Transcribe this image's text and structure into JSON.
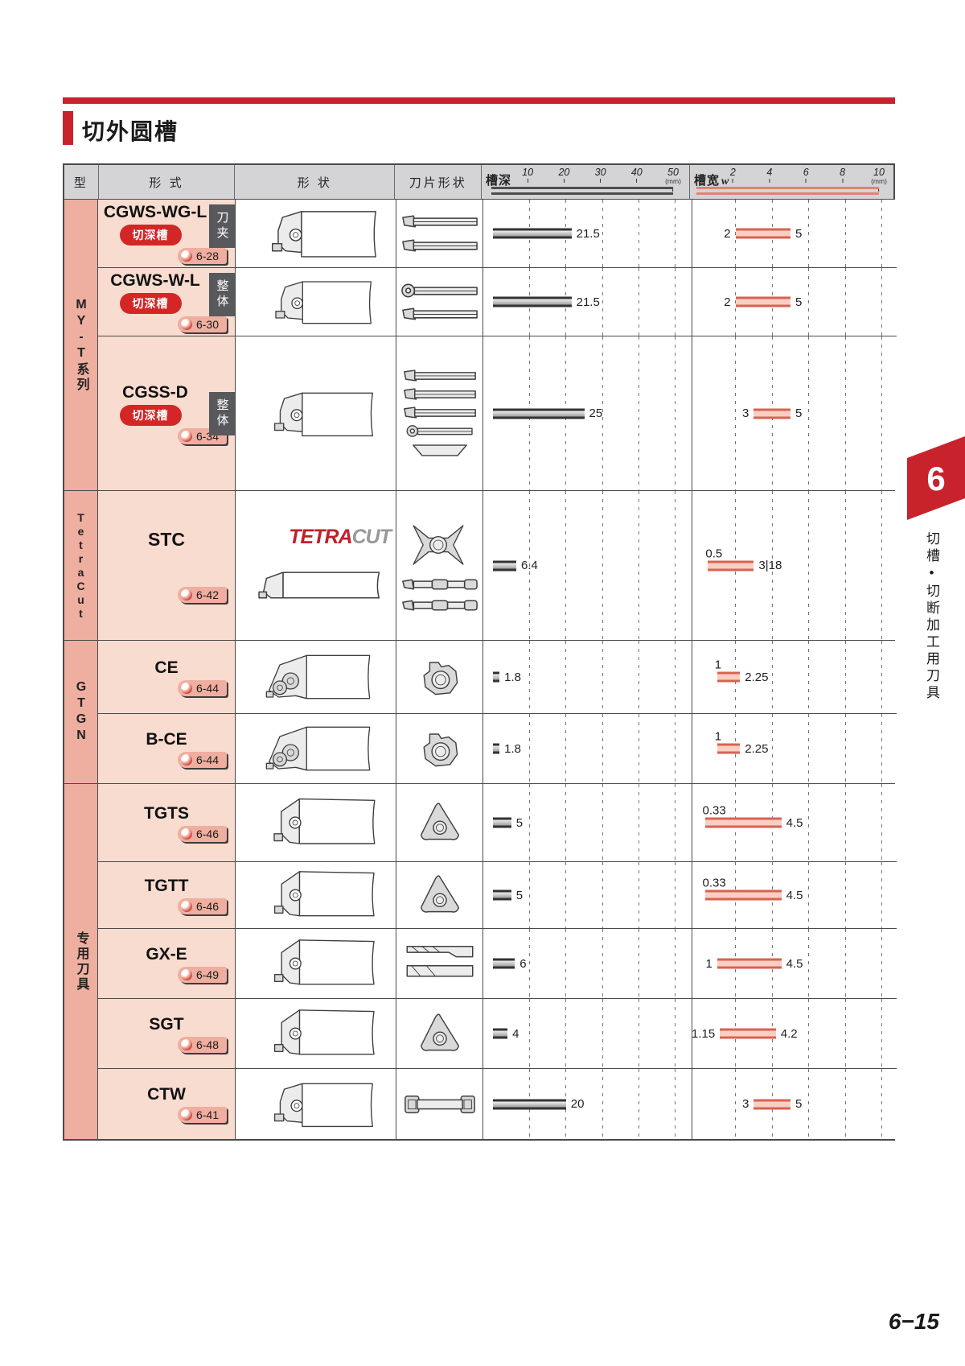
{
  "page": {
    "title": "切外圆槽",
    "page_number": "6−15",
    "side_tab": {
      "number": "6",
      "label": "切槽•切断加工用刀具"
    }
  },
  "logo": {
    "part1": "TETRA",
    "part2": "CUT"
  },
  "table": {
    "headers": {
      "type": "型",
      "form": "形 式",
      "shape": "形 状",
      "insert_shape": "刀片形状",
      "depth": {
        "label": "槽深",
        "ticks": [
          "10",
          "20",
          "30",
          "40",
          "50"
        ],
        "unit": "(mm)"
      },
      "width": {
        "label": "槽宽",
        "var": "w",
        "ticks": [
          "2",
          "4",
          "6",
          "8",
          "10"
        ],
        "unit": "(mm)"
      }
    },
    "groups": [
      {
        "name": "MY-T系列",
        "rows": [
          {
            "model": "CGWS-WG-L",
            "badge": "切深槽",
            "link": "6-28",
            "tag": "刀夹",
            "depth": {
              "start": 0,
              "end": 21.5,
              "max": 50,
              "label": "21.5"
            },
            "width": {
              "start": 2,
              "end": 5,
              "max": 10,
              "label_left": "2",
              "label_right": "5"
            }
          },
          {
            "model": "CGWS-W-L",
            "badge": "切深槽",
            "link": "6-30",
            "tag": "整体",
            "depth": {
              "start": 0,
              "end": 21.5,
              "max": 50,
              "label": "21.5"
            },
            "width": {
              "start": 2,
              "end": 5,
              "max": 10,
              "label_left": "2",
              "label_right": "5"
            }
          },
          {
            "model": "CGSS-D",
            "badge": "切深槽",
            "link": "6-34",
            "tag": "整体",
            "depth": {
              "start": 0,
              "end": 25,
              "max": 50,
              "label": "25"
            },
            "width": {
              "start": 3,
              "end": 5,
              "max": 10,
              "label_left": "3",
              "label_right": "5"
            }
          }
        ]
      },
      {
        "name": "TetraCut",
        "rows": [
          {
            "model": "STC",
            "link": "6-42",
            "depth": {
              "start": 0,
              "end": 6.4,
              "max": 50,
              "label": "6.4"
            },
            "width": {
              "start": 0.5,
              "end": 3,
              "max": 10,
              "label_left": "0.5",
              "label_right": "3|18"
            }
          }
        ]
      },
      {
        "name": "GTGN",
        "rows": [
          {
            "model": "CE",
            "link": "6-44",
            "depth": {
              "start": 0,
              "end": 1.8,
              "max": 50,
              "label": "1.8"
            },
            "width": {
              "start": 1,
              "end": 2.25,
              "max": 10,
              "label_left": "1",
              "label_right": "2.25"
            }
          },
          {
            "model": "B-CE",
            "link": "6-44",
            "depth": {
              "start": 0,
              "end": 1.8,
              "max": 50,
              "label": "1.8"
            },
            "width": {
              "start": 1,
              "end": 2.25,
              "max": 10,
              "label_left": "1",
              "label_right": "2.25"
            }
          }
        ]
      },
      {
        "name": "专用刀具",
        "rows": [
          {
            "model": "TGTS",
            "link": "6-46",
            "depth": {
              "start": 0,
              "end": 5,
              "max": 50,
              "label": "5"
            },
            "width": {
              "start": 0.33,
              "end": 4.5,
              "max": 10,
              "label_left": "0.33",
              "label_right": "4.5"
            }
          },
          {
            "model": "TGTT",
            "link": "6-46",
            "depth": {
              "start": 0,
              "end": 5,
              "max": 50,
              "label": "5"
            },
            "width": {
              "start": 0.33,
              "end": 4.5,
              "max": 10,
              "label_left": "0.33",
              "label_right": "4.5"
            }
          },
          {
            "model": "GX-E",
            "link": "6-49",
            "depth": {
              "start": 0,
              "end": 6,
              "max": 50,
              "label": "6"
            },
            "width": {
              "start": 1,
              "end": 4.5,
              "max": 10,
              "label_left": "1",
              "label_right": "4.5"
            }
          },
          {
            "model": "SGT",
            "link": "6-48",
            "depth": {
              "start": 0,
              "end": 4,
              "max": 50,
              "label": "4"
            },
            "width": {
              "start": 1.15,
              "end": 4.2,
              "max": 10,
              "label_left": "1.15",
              "label_right": "4.2"
            }
          },
          {
            "model": "CTW",
            "link": "6-41",
            "depth": {
              "start": 0,
              "end": 20,
              "max": 50,
              "label": "20"
            },
            "width": {
              "start": 3,
              "end": 5,
              "max": 10,
              "label_left": "3",
              "label_right": "5"
            }
          }
        ]
      }
    ]
  },
  "chart_data": {
    "type": "bar",
    "title": "切外圆槽 — 槽深 / 槽宽 范围",
    "categories": [
      "CGWS-WG-L",
      "CGWS-W-L",
      "CGSS-D",
      "STC",
      "CE",
      "B-CE",
      "TGTS",
      "TGTT",
      "GX-E",
      "SGT",
      "CTW"
    ],
    "series": [
      {
        "name": "槽深 (mm)",
        "values": [
          21.5,
          21.5,
          25,
          6.4,
          1.8,
          1.8,
          5,
          5,
          6,
          4,
          20
        ]
      },
      {
        "name": "槽宽 min (mm)",
        "values": [
          2,
          2,
          3,
          0.5,
          1,
          1,
          0.33,
          0.33,
          1,
          1.15,
          3
        ]
      },
      {
        "name": "槽宽 max (mm)",
        "values": [
          5,
          5,
          5,
          3,
          2.25,
          2.25,
          4.5,
          4.5,
          4.5,
          4.2,
          5
        ]
      }
    ],
    "xlabel": "形式",
    "ylabel": "mm",
    "depth_axis_range": [
      0,
      50
    ],
    "width_axis_range": [
      0,
      10
    ],
    "grid": true,
    "legend_position": "top"
  }
}
